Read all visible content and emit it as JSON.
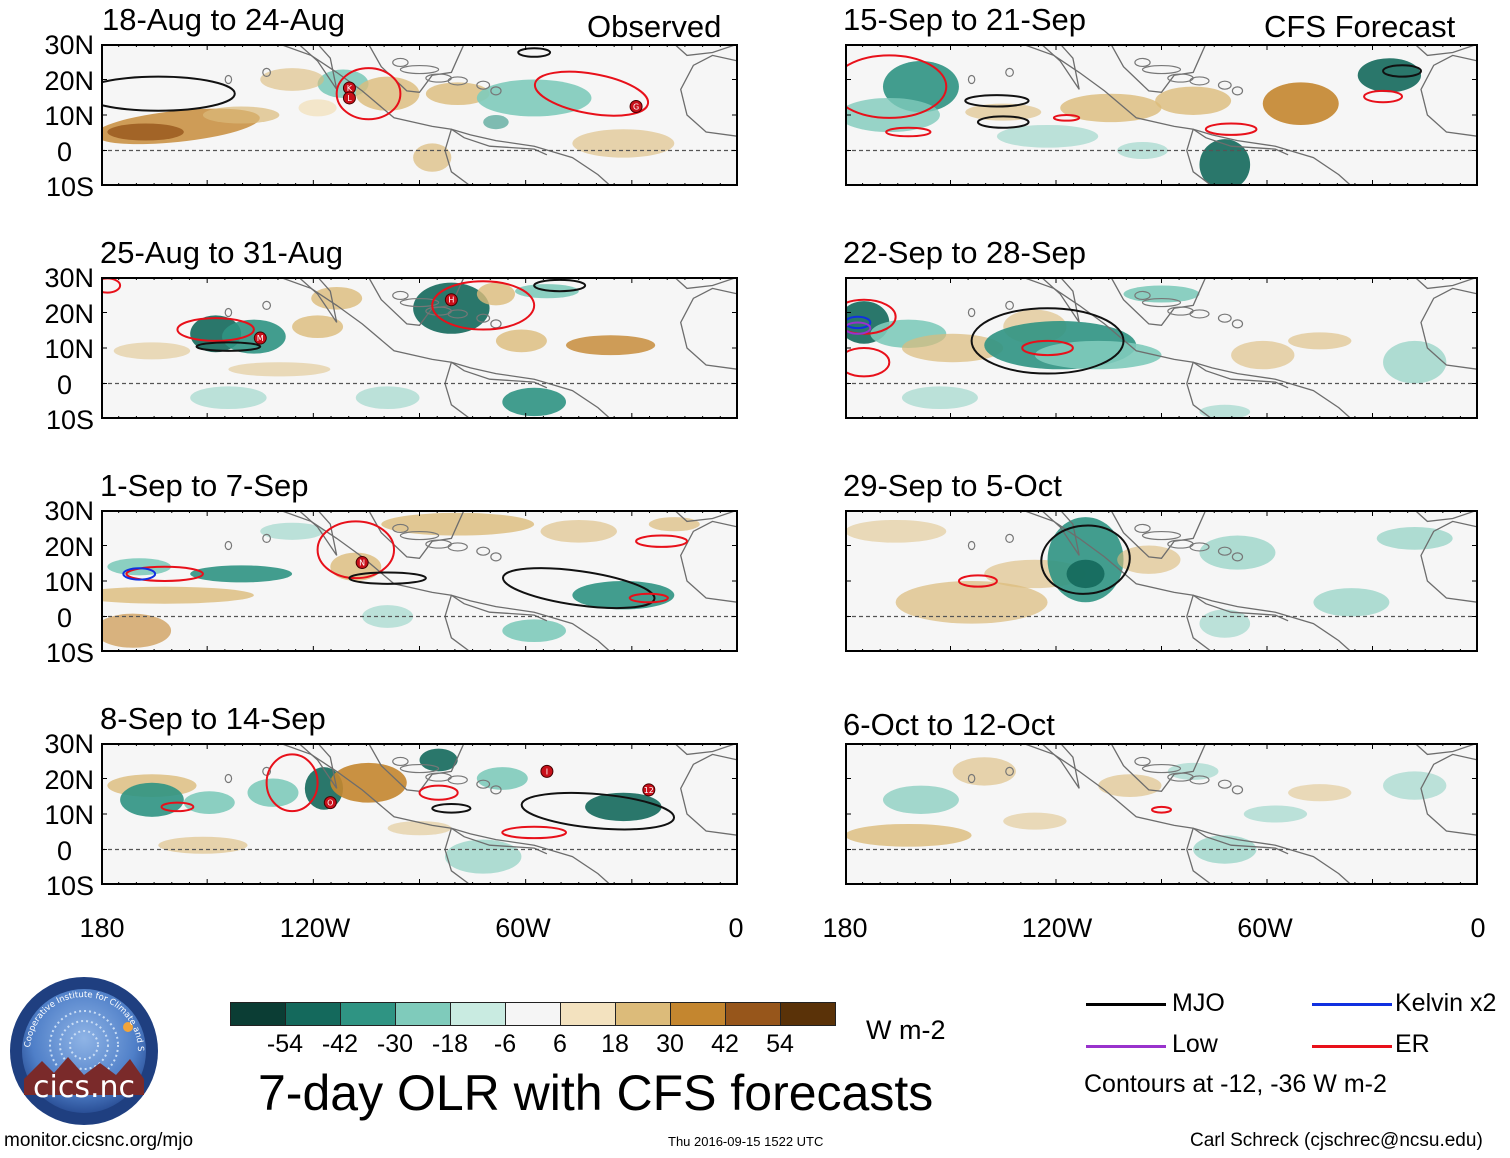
{
  "observed_label": "Observed",
  "forecast_label": "CFS Forecast",
  "left_panels": [
    {
      "title": "18-Aug to 24-Aug",
      "storms": [
        "K",
        "L",
        "G"
      ]
    },
    {
      "title": "25-Aug to 31-Aug",
      "storms": [
        "H",
        "M"
      ]
    },
    {
      "title": "1-Sep to 7-Sep",
      "storms": [
        "N"
      ]
    },
    {
      "title": "8-Sep to 14-Sep",
      "storms": [
        "O",
        "I",
        "12"
      ]
    }
  ],
  "right_panels": [
    {
      "title": "15-Sep to 21-Sep"
    },
    {
      "title": "22-Sep to 28-Sep"
    },
    {
      "title": "29-Sep to 5-Oct"
    },
    {
      "title": "6-Oct to 12-Oct"
    }
  ],
  "lat_labels": [
    "30N",
    "20N",
    "10N",
    "0",
    "10S"
  ],
  "lon_labels": [
    "180",
    "120W",
    "60W",
    "0"
  ],
  "colorbar": {
    "colors": [
      "#0b3d34",
      "#14695c",
      "#2f9483",
      "#7fcbbb",
      "#c9ebe1",
      "#f5f5f5",
      "#f3e2bf",
      "#dcbb7a",
      "#c4862f",
      "#97561b",
      "#5a3208"
    ],
    "labels": [
      "-54",
      "-42",
      "-30",
      "-18",
      "-6",
      "6",
      "18",
      "30",
      "42",
      "54"
    ],
    "units": "W m-2"
  },
  "main_title": "7-day OLR with CFS forecasts",
  "legend": {
    "items": [
      {
        "label": "MJO",
        "color": "#000000"
      },
      {
        "label": "Kelvin x2",
        "color": "#1030e0"
      },
      {
        "label": "Low",
        "color": "#9932cc"
      },
      {
        "label": "ER",
        "color": "#e8101a"
      }
    ],
    "note": "Contours at -12, -36 W m-2"
  },
  "logo": {
    "text": "cics.nc",
    "ring_text": "Cooperative Institute for Climate and Satellites"
  },
  "footer": {
    "website": "monitor.cicsnc.org/mjo",
    "timestamp": "Thu 2016-09-15 1522 UTC",
    "author": "Carl Schreck (cjschrec@ncsu.edu)"
  }
}
